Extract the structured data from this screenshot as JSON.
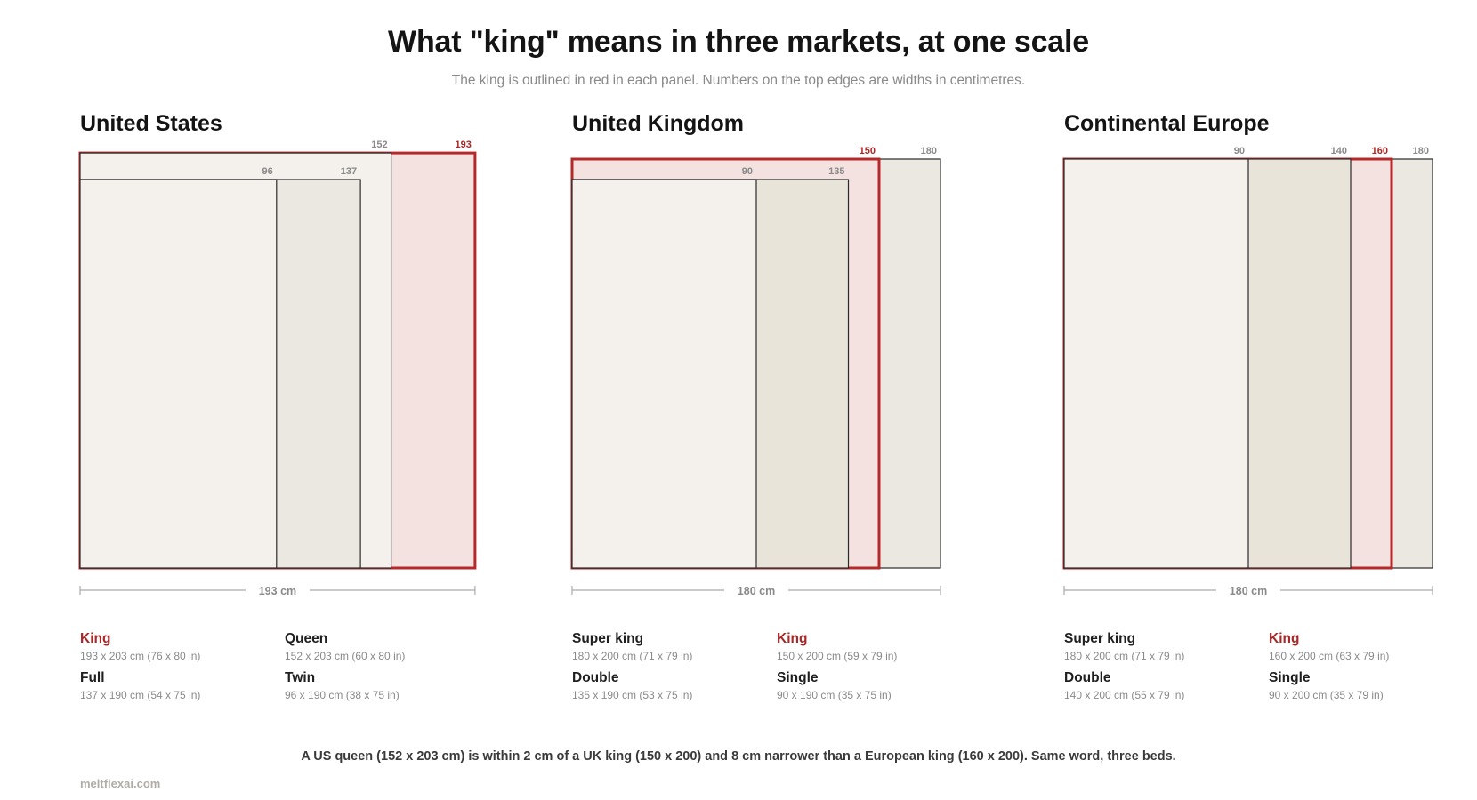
{
  "title": "What \"king\" means in three markets, at one scale",
  "subtitle": "The king is outlined in red in each panel. Numbers on the top edges are widths in centimetres.",
  "colors": {
    "king_stroke": "#b6292a",
    "king_fill": "#f3e2e0",
    "bed_stroke": "#2a2a2a"
  },
  "panels": [
    {
      "name": "United States",
      "scale_label": "193 cm",
      "scale_max_cm": 193,
      "beds": [
        {
          "name": "King",
          "width": 193,
          "length": 203,
          "width_label": "193",
          "is_king": true,
          "dims": "193 x 203 cm (76 x 80 in)",
          "fill": "#f3e2e0"
        },
        {
          "name": "Queen",
          "width": 152,
          "length": 203,
          "width_label": "152",
          "is_king": false,
          "dims": "152 x 203 cm (60 x 80 in)",
          "fill": "#f4f1ec"
        },
        {
          "name": "Full",
          "width": 137,
          "length": 190,
          "width_label": "137",
          "is_king": false,
          "dims": "137 x 190 cm (54 x 75 in)",
          "fill": "#ebe8e2"
        },
        {
          "name": "Twin",
          "width": 96,
          "length": 190,
          "width_label": "96",
          "is_king": false,
          "dims": "96 x 190 cm (38 x 75 in)",
          "fill": "#f4f1ec"
        }
      ],
      "legend": [
        {
          "name": "King",
          "dims": "193 x 203 cm (76 x 80 in)",
          "is_king": true
        },
        {
          "name": "Queen",
          "dims": "152 x 203 cm (60 x 80 in)",
          "is_king": false
        },
        {
          "name": "Full",
          "dims": "137 x 190 cm (54 x 75 in)",
          "is_king": false
        },
        {
          "name": "Twin",
          "dims": "96 x 190 cm (38 x 75 in)",
          "is_king": false
        }
      ]
    },
    {
      "name": "United Kingdom",
      "scale_label": "180 cm",
      "scale_max_cm": 180,
      "beds": [
        {
          "name": "Super king",
          "width": 180,
          "length": 200,
          "width_label": "180",
          "is_king": false,
          "dims": "180 x 200 cm (71 x 79 in)",
          "fill": "#ebe8e2"
        },
        {
          "name": "King",
          "width": 150,
          "length": 200,
          "width_label": "150",
          "is_king": true,
          "dims": "150 x 200 cm (59 x 79 in)",
          "fill": "#f3e2e0"
        },
        {
          "name": "Double",
          "width": 135,
          "length": 190,
          "width_label": "135",
          "is_king": false,
          "dims": "135 x 190 cm (53 x 75 in)",
          "fill": "#e9e4da"
        },
        {
          "name": "Single",
          "width": 90,
          "length": 190,
          "width_label": "90",
          "is_king": false,
          "dims": "90 x 190 cm (35 x 75 in)",
          "fill": "#f4f1ec"
        }
      ],
      "legend": [
        {
          "name": "Super king",
          "dims": "180 x 200 cm (71 x 79 in)",
          "is_king": false
        },
        {
          "name": "King",
          "dims": "150 x 200 cm (59 x 79 in)",
          "is_king": true
        },
        {
          "name": "Double",
          "dims": "135 x 190 cm (53 x 75 in)",
          "is_king": false
        },
        {
          "name": "Single",
          "dims": "90 x 190 cm (35 x 75 in)",
          "is_king": false
        }
      ]
    },
    {
      "name": "Continental Europe",
      "scale_label": "180 cm",
      "scale_max_cm": 180,
      "beds": [
        {
          "name": "Super king",
          "width": 180,
          "length": 200,
          "width_label": "180",
          "is_king": false,
          "dims": "180 x 200 cm (71 x 79 in)",
          "fill": "#ebe8e2"
        },
        {
          "name": "King",
          "width": 160,
          "length": 200,
          "width_label": "160",
          "is_king": true,
          "dims": "160 x 200 cm (63 x 79 in)",
          "fill": "#f3e2e0"
        },
        {
          "name": "Double",
          "width": 140,
          "length": 200,
          "width_label": "140",
          "is_king": false,
          "dims": "140 x 200 cm (55 x 79 in)",
          "fill": "#e9e4da"
        },
        {
          "name": "Single",
          "width": 90,
          "length": 200,
          "width_label": "90",
          "is_king": false,
          "dims": "90 x 200 cm (35 x 79 in)",
          "fill": "#f4f1ec"
        }
      ],
      "legend": [
        {
          "name": "Super king",
          "dims": "180 x 200 cm (71 x 79 in)",
          "is_king": false
        },
        {
          "name": "King",
          "dims": "160 x 200 cm (63 x 79 in)",
          "is_king": true
        },
        {
          "name": "Double",
          "dims": "140 x 200 cm (55 x 79 in)",
          "is_king": false
        },
        {
          "name": "Single",
          "dims": "90 x 200 cm (35 x 79 in)",
          "is_king": false
        }
      ]
    }
  ],
  "footnote": "A US queen (152 x 203 cm) is within 2 cm of a UK king (150 x 200) and 8 cm narrower than a European king (160 x 200). Same word, three beds.",
  "credit": "meltflexai.com"
}
